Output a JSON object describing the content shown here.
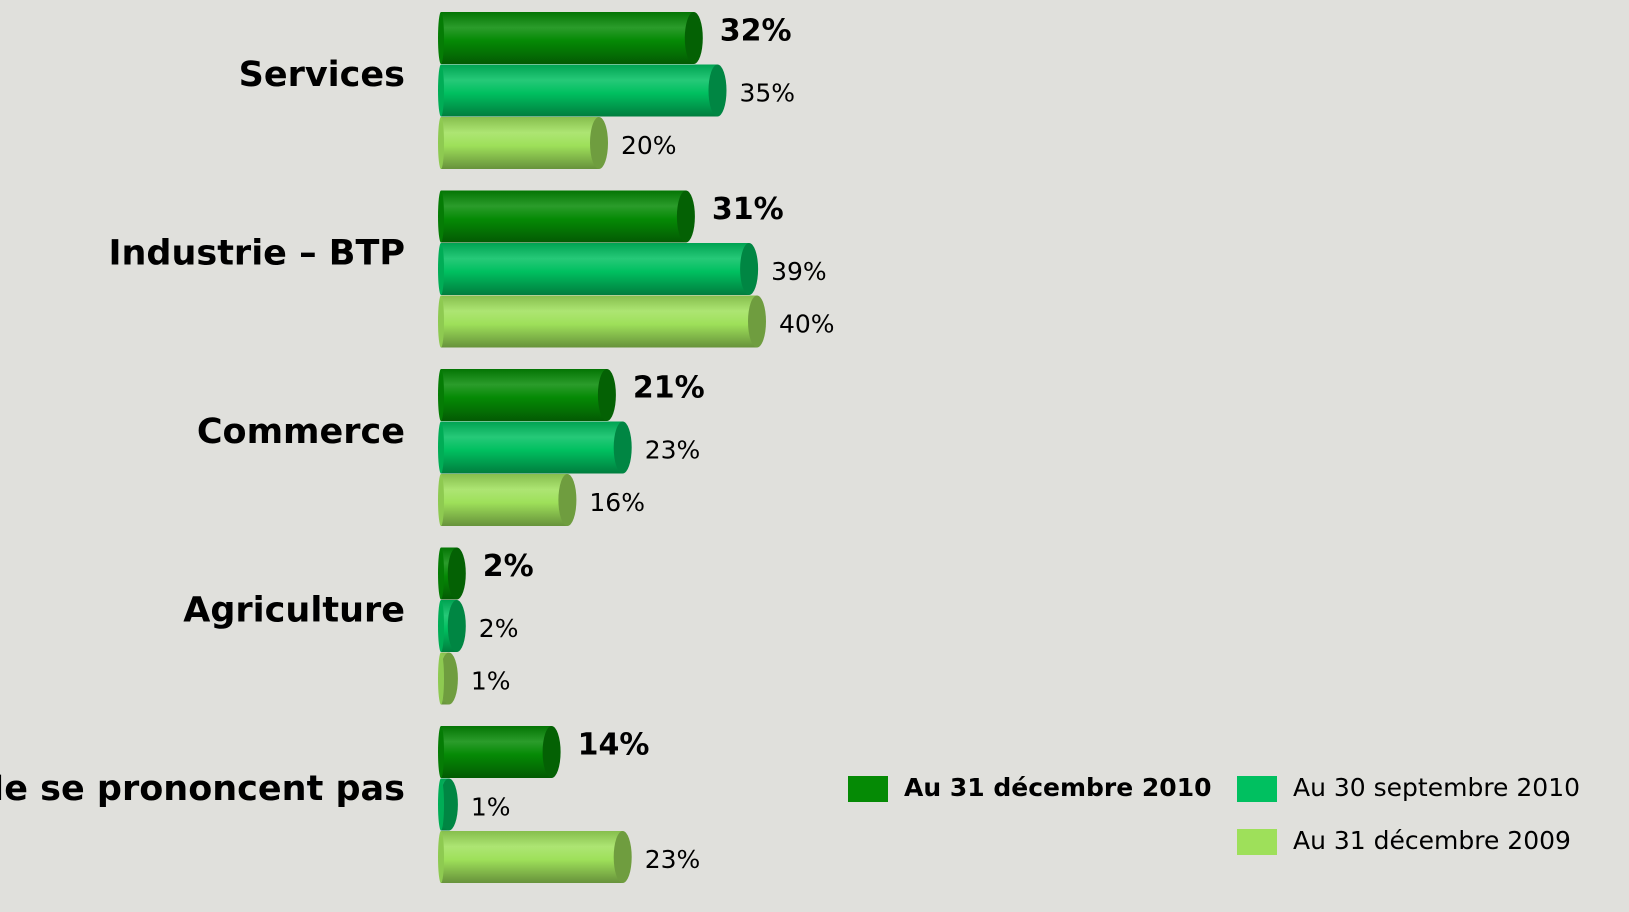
{
  "chart_data": {
    "type": "bar",
    "orientation": "horizontal",
    "categories": [
      "Services",
      "Industrie – BTP",
      "Commerce",
      "Agriculture",
      "Ne se prononcent pas"
    ],
    "series": [
      {
        "name": "Au 31 décembre 2010",
        "color": "#058a05",
        "values": [
          32,
          31,
          21,
          2,
          14
        ],
        "value_labels": [
          "32%",
          "31%",
          "21%",
          "2%",
          "14%"
        ]
      },
      {
        "name": "Au 30 septembre 2010",
        "color": "#00c060",
        "values": [
          35,
          39,
          23,
          2,
          1
        ],
        "value_labels": [
          "35%",
          "39%",
          "23%",
          "2%",
          "1%"
        ]
      },
      {
        "name": "Au 31 décembre 2009",
        "color": "#9ee05a",
        "values": [
          20,
          40,
          16,
          1,
          23
        ],
        "value_labels": [
          "20%",
          "40%",
          "16%",
          "1%",
          "23%"
        ]
      }
    ],
    "legend": "lower right"
  }
}
